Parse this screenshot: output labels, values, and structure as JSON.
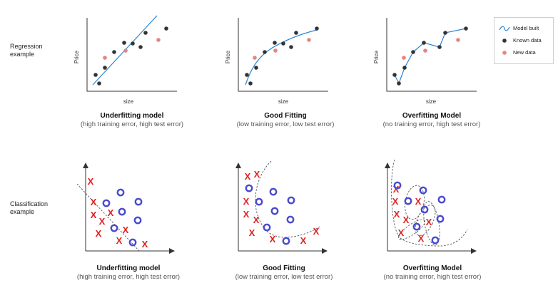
{
  "rows": {
    "regression_label": [
      "Regression",
      "example"
    ],
    "classification_label": [
      "Classification",
      "example"
    ]
  },
  "axis": {
    "price": "Price",
    "size": "size"
  },
  "captions": [
    {
      "title": "Underfitting model",
      "sub": "(high training error, high test error)"
    },
    {
      "title": "Good Fitting",
      "sub": "(low training error, low test error)"
    },
    {
      "title": "Overfitting Model",
      "sub": "(no training error, high test error)"
    }
  ],
  "captions_bottom": [
    {
      "title": "Underfitting model",
      "sub": "(high training error, high test error)"
    },
    {
      "title": "Good Fitting",
      "sub": "(low training error, low test error)"
    },
    {
      "title": "Overfitting Model",
      "sub": "(no training error, high test error)"
    }
  ],
  "legend": {
    "model": "Model built",
    "known": "Known data",
    "new": "New data"
  },
  "colors": {
    "model_line": "#2b84d6",
    "known": "#333333",
    "new": "#e8847a",
    "x_mark": "#e02020",
    "o_mark": "#4a4ad0",
    "axis": "#333333"
  },
  "glyphs": {
    "x": "X"
  }
}
